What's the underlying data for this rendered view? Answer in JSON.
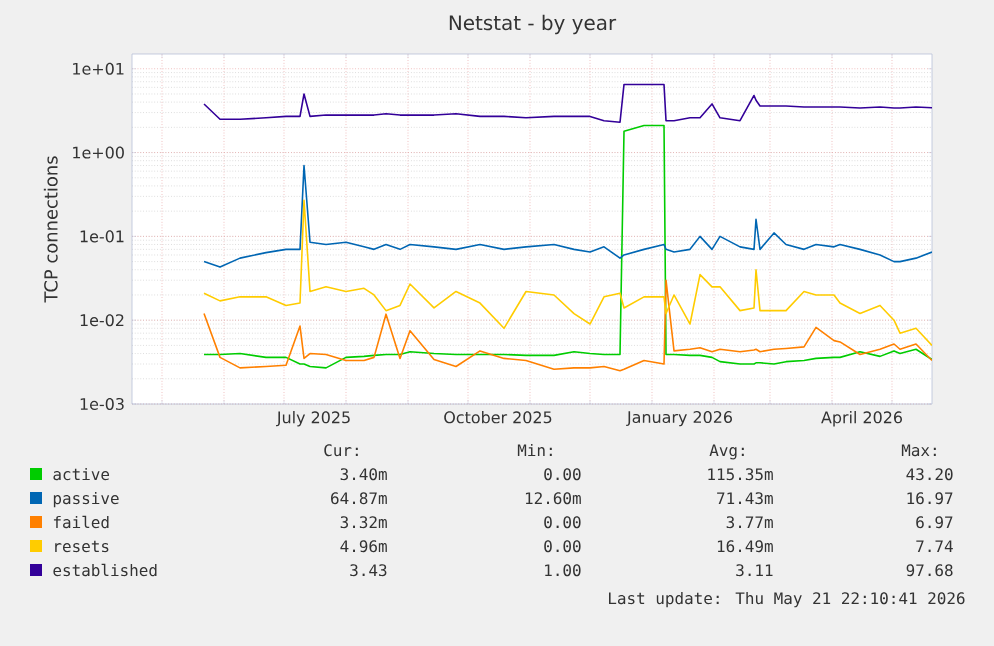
{
  "chart_data": {
    "type": "line",
    "title": "Netstat - by year",
    "ylabel": "TCP connections",
    "log": true,
    "grid": true,
    "legend": "bottom",
    "marker": "none",
    "xlim": [
      "2025-04-16",
      "2026-05-21"
    ],
    "xticks": [
      {
        "value": "2025-05-01",
        "label": null
      },
      {
        "value": "2025-06-01",
        "label": null
      },
      {
        "value": "2025-07-01",
        "label": null
      },
      {
        "value": "2025-08-01",
        "label": null
      },
      {
        "value": "2025-09-01",
        "label": null
      },
      {
        "value": "2025-10-01",
        "label": null
      },
      {
        "value": "2025-11-01",
        "label": null
      },
      {
        "value": "2025-12-01",
        "label": null
      },
      {
        "value": "2026-01-01",
        "label": null
      },
      {
        "value": "2026-02-01",
        "label": null
      },
      {
        "value": "2026-03-01",
        "label": null
      },
      {
        "value": "2026-04-01",
        "label": null
      },
      {
        "value": "2026-05-01",
        "label": null
      },
      {
        "value": "2025-07-16",
        "label": "July 2025"
      },
      {
        "value": "2025-10-16",
        "label": "October 2025"
      },
      {
        "value": "2026-01-15",
        "label": "January 2026"
      },
      {
        "value": "2026-04-16",
        "label": "April 2026"
      }
    ],
    "ylim": [
      0.001,
      15
    ],
    "yticks": [
      {
        "value": 0.001,
        "label": "1e-03"
      },
      {
        "value": 0.01,
        "label": "1e-02"
      },
      {
        "value": 0.1,
        "label": "1e-01"
      },
      {
        "value": 1,
        "label": "1e+00"
      },
      {
        "value": 10,
        "label": "1e+01"
      }
    ],
    "x": [
      "2025-05-22",
      "2025-05-30",
      "2025-06-09",
      "2025-06-22",
      "2025-07-02",
      "2025-07-09",
      "2025-07-11",
      "2025-07-14",
      "2025-07-22",
      "2025-08-01",
      "2025-08-10",
      "2025-08-15",
      "2025-08-21",
      "2025-08-28",
      "2025-09-02",
      "2025-09-14",
      "2025-09-25",
      "2025-10-07",
      "2025-10-19",
      "2025-10-30",
      "2025-11-13",
      "2025-11-23",
      "2025-12-01",
      "2025-12-08",
      "2025-12-16",
      "2025-12-18",
      "2025-12-28",
      "2026-01-07",
      "2026-01-08",
      "2026-01-12",
      "2026-01-20",
      "2026-01-25",
      "2026-01-31",
      "2026-02-04",
      "2026-02-14",
      "2026-02-21",
      "2026-02-22",
      "2026-02-24",
      "2026-03-03",
      "2026-03-09",
      "2026-03-18",
      "2026-03-24",
      "2026-04-02",
      "2026-04-05",
      "2026-04-15",
      "2026-04-25",
      "2026-05-02",
      "2026-05-05",
      "2026-05-13",
      "2026-05-21"
    ],
    "series": [
      {
        "name": "active",
        "color": "#00cc00",
        "values": [
          0.0039,
          0.0039,
          0.004,
          0.0036,
          0.0036,
          0.003,
          0.003,
          0.0028,
          0.0027,
          0.0036,
          0.0037,
          0.0038,
          0.0039,
          0.0039,
          0.0042,
          0.004,
          0.0039,
          0.0039,
          0.0039,
          0.0038,
          0.0038,
          0.0042,
          0.004,
          0.0039,
          0.0039,
          1.8,
          2.1,
          2.1,
          0.0039,
          0.0039,
          0.0038,
          0.0038,
          0.0036,
          0.0032,
          0.003,
          0.003,
          0.0031,
          0.0031,
          0.003,
          0.0032,
          0.0033,
          0.0035,
          0.0036,
          0.0036,
          0.0042,
          0.0037,
          0.0043,
          0.004,
          0.0045,
          0.0034
        ]
      },
      {
        "name": "passive",
        "color": "#0066b3",
        "values": [
          0.05,
          0.043,
          0.055,
          0.064,
          0.07,
          0.07,
          0.7,
          0.085,
          0.08,
          0.085,
          0.075,
          0.07,
          0.08,
          0.07,
          0.08,
          0.075,
          0.07,
          0.08,
          0.07,
          0.075,
          0.08,
          0.07,
          0.065,
          0.075,
          0.055,
          0.06,
          0.07,
          0.08,
          0.07,
          0.065,
          0.07,
          0.1,
          0.07,
          0.1,
          0.075,
          0.07,
          0.16,
          0.07,
          0.11,
          0.08,
          0.07,
          0.08,
          0.075,
          0.08,
          0.07,
          0.06,
          0.05,
          0.05,
          0.055,
          0.065
        ]
      },
      {
        "name": "failed",
        "color": "#ff8000",
        "values": [
          0.012,
          0.0036,
          0.0027,
          0.0028,
          0.0029,
          0.0085,
          0.0035,
          0.004,
          0.0039,
          0.0033,
          0.0033,
          0.0036,
          0.0118,
          0.0035,
          0.0075,
          0.0034,
          0.0028,
          0.0043,
          0.0035,
          0.0033,
          0.0026,
          0.0027,
          0.0027,
          0.0028,
          0.0025,
          0.0026,
          0.0033,
          0.003,
          0.03,
          0.0043,
          0.0045,
          0.0047,
          0.0042,
          0.0045,
          0.0042,
          0.0044,
          0.0045,
          0.0042,
          0.0045,
          0.0046,
          0.0048,
          0.0082,
          0.0057,
          0.0055,
          0.0039,
          0.0045,
          0.0052,
          0.0045,
          0.0052,
          0.0033
        ]
      },
      {
        "name": "resets",
        "color": "#ffcc00",
        "values": [
          0.021,
          0.017,
          0.019,
          0.019,
          0.015,
          0.016,
          0.27,
          0.022,
          0.025,
          0.022,
          0.024,
          0.02,
          0.013,
          0.015,
          0.027,
          0.014,
          0.022,
          0.016,
          0.008,
          0.022,
          0.02,
          0.012,
          0.009,
          0.019,
          0.021,
          0.014,
          0.019,
          0.019,
          0.012,
          0.02,
          0.009,
          0.035,
          0.025,
          0.025,
          0.013,
          0.014,
          0.04,
          0.013,
          0.013,
          0.013,
          0.022,
          0.02,
          0.02,
          0.016,
          0.012,
          0.015,
          0.01,
          0.007,
          0.008,
          0.005
        ]
      },
      {
        "name": "established",
        "color": "#330099",
        "values": [
          3.8,
          2.5,
          2.5,
          2.6,
          2.7,
          2.7,
          5.0,
          2.7,
          2.8,
          2.8,
          2.8,
          2.8,
          2.9,
          2.8,
          2.8,
          2.8,
          2.9,
          2.7,
          2.7,
          2.6,
          2.7,
          2.7,
          2.7,
          2.4,
          2.3,
          6.5,
          6.5,
          6.5,
          2.4,
          2.4,
          2.6,
          2.6,
          3.8,
          2.6,
          2.4,
          4.8,
          4.2,
          3.6,
          3.6,
          3.6,
          3.5,
          3.5,
          3.5,
          3.5,
          3.4,
          3.5,
          3.4,
          3.4,
          3.5,
          3.43
        ]
      }
    ],
    "annotations": [
      "Cur:",
      "Min:",
      "Avg:",
      "Max:",
      "3.40m",
      "0.00",
      "115.35m",
      "43.20",
      "64.87m",
      "12.60m",
      "71.43m",
      "16.97",
      "3.32m",
      "0.00",
      "3.77m",
      "6.97",
      "4.96m",
      "0.00",
      "16.49m",
      "7.74",
      "3.43",
      "1.00",
      "3.11",
      "97.68",
      "Last update: Thu May 21 22:10:41 2026"
    ]
  }
}
